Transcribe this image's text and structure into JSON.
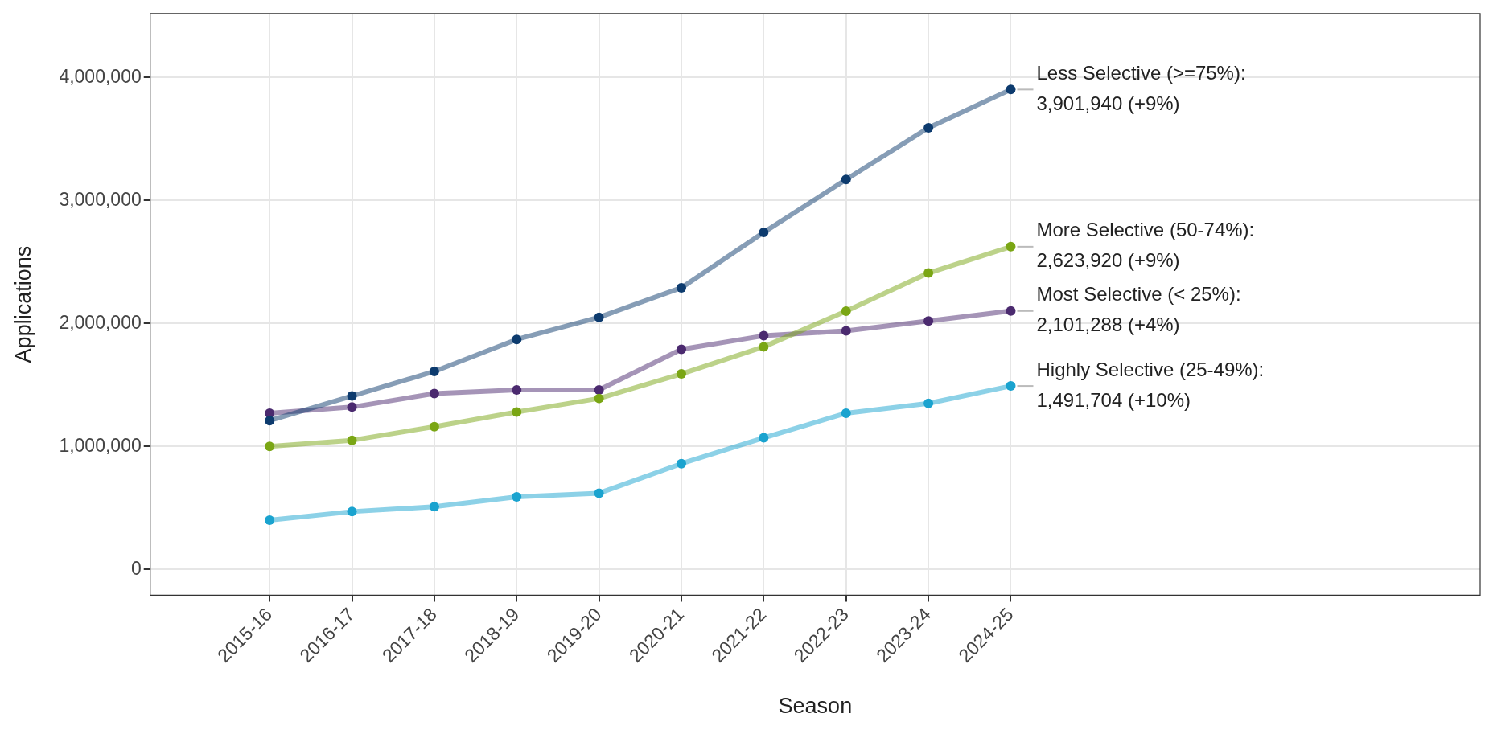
{
  "chart_data": {
    "type": "line",
    "xlabel": "Season",
    "ylabel": "Applications",
    "categories": [
      "2015-16",
      "2016-17",
      "2017-18",
      "2018-19",
      "2019-20",
      "2020-21",
      "2021-22",
      "2022-23",
      "2023-24",
      "2024-25"
    ],
    "series": [
      {
        "color": "#0d3b6e",
        "values": [
          1210000,
          1410000,
          1610000,
          1870000,
          2050000,
          2290000,
          2740000,
          3170000,
          3590000,
          3901940
        ]
      },
      {
        "color": "#7aa614",
        "values": [
          1000000,
          1050000,
          1160000,
          1280000,
          1390000,
          1590000,
          1810000,
          2100000,
          2410000,
          2623920
        ]
      },
      {
        "color": "#4b2a6f",
        "values": [
          1270000,
          1320000,
          1430000,
          1460000,
          1460000,
          1790000,
          1900000,
          1940000,
          2020000,
          2101288
        ]
      },
      {
        "color": "#1aa3cf",
        "values": [
          400000,
          470000,
          510000,
          590000,
          620000,
          860000,
          1070000,
          1270000,
          1350000,
          1491704
        ]
      }
    ],
    "ylim": [
      -210000,
      4520000
    ],
    "yticks": [
      {
        "value": 0,
        "label": "0"
      },
      {
        "value": 1000000,
        "label": "1,000,000"
      },
      {
        "value": 2000000,
        "label": "2,000,000"
      },
      {
        "value": 3000000,
        "label": "3,000,000"
      },
      {
        "value": 4000000,
        "label": "4,000,000"
      }
    ],
    "grid": true,
    "legend": false,
    "marker": "circle",
    "line_style": "solid",
    "annotations": [
      {
        "text": "Less Selective (>=75%):\n3,901,940 (+9%)",
        "x": "2024-25",
        "y": 3901940
      },
      {
        "text": "More Selective (50-74%):\n2,623,920 (+9%)",
        "x": "2024-25",
        "y": 2623920
      },
      {
        "text": "Most Selective (< 25%):\n2,101,288 (+4%)",
        "x": "2024-25",
        "y": 2101288
      },
      {
        "text": "Highly Selective (25-49%):\n1,491,704 (+10%)",
        "x": "2024-25",
        "y": 1491704
      }
    ]
  }
}
